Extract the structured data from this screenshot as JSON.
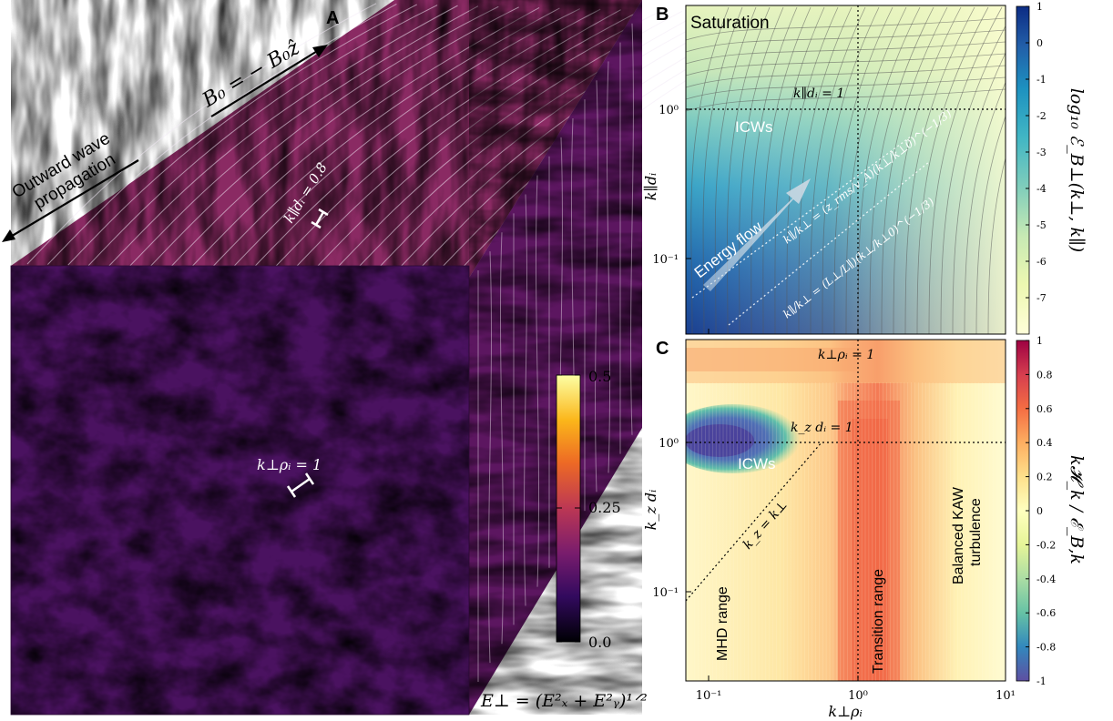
{
  "panel_a": {
    "letter": "A",
    "b_field_label": "B₀ = − B₀ẑ",
    "outward_line1": "Outward wave",
    "outward_line2": "propagation",
    "kpar_annot": "k∥dᵢ = 0.8",
    "kperp_annot": "k⊥ρᵢ = 1",
    "colorbar_ticks": [
      "0.5",
      "0.25",
      "0.0"
    ],
    "colorbar_range": [
      0.0,
      0.5
    ],
    "eperp_label": "E⊥ = (E²ₓ + E²ᵧ)¹ᐟ²",
    "colormap": [
      "#000004",
      "#320a5e",
      "#781c6d",
      "#bc3754",
      "#ed6925",
      "#fbb61a",
      "#fcffa4"
    ]
  },
  "panel_b": {
    "letter": "B",
    "title": "Saturation",
    "ylabel": "k∥dᵢ",
    "ytick_1": "10⁰",
    "ytick_2": "10⁻¹",
    "hline_label": "k∥dᵢ = 1",
    "icw_label": "ICWs",
    "energy_flow": "Energy flow",
    "relation_1": "k∥/k⊥ = (z_rms/v_A)(k⊥/k⊥0)^(−1/3)",
    "relation_2": "k∥/k⊥ = (L⊥/L∥)(k⊥/k⊥0)^(−1/3)",
    "colorbar_label": "log₁₀ ℰ_B⊥(k⊥, k∥)",
    "colorbar_ticks": [
      "1",
      "0",
      "-1",
      "-2",
      "-3",
      "-4",
      "-5",
      "-6",
      "-7"
    ]
  },
  "panel_c": {
    "letter": "C",
    "ylabel": "k_z dᵢ",
    "xlabel": "k⊥ρᵢ",
    "ytick_1": "10⁰",
    "ytick_2": "10⁻¹",
    "xticks": [
      "10⁻¹",
      "10⁰",
      "10¹"
    ],
    "vline_label": "k⊥ρᵢ = 1",
    "hline_label": "k_z dᵢ = 1",
    "diag_label": "k_z = k⊥",
    "icw_label": "ICWs",
    "mhd_label": "MHD range",
    "transition_label": "Transition range",
    "balanced_line1": "Balanced KAW",
    "balanced_line2": "turbulence",
    "colorbar_label": "k𝓗_k / ℰ_B,k",
    "colorbar_ticks": [
      "1",
      "0.8",
      "0.6",
      "0.4",
      "0.2",
      "0",
      "-0.2",
      "-0.4",
      "-0.6",
      "-0.8",
      "-1"
    ]
  },
  "chart_data": [
    {
      "type": "heatmap",
      "title": "Saturation",
      "xlabel": "k⊥ρᵢ",
      "ylabel": "k∥dᵢ",
      "xscale": "log",
      "yscale": "log",
      "xlim": [
        0.075,
        10
      ],
      "ylim": [
        0.035,
        6
      ],
      "colorbar": {
        "label": "log₁₀ ℰ_B⊥(k⊥, k∥)",
        "range": [
          -8,
          1
        ],
        "ticks": [
          1,
          0,
          -1,
          -2,
          -3,
          -4,
          -5,
          -6,
          -7
        ]
      },
      "annotations": [
        "k∥dᵢ = 1",
        "ICWs",
        "Energy flow"
      ]
    },
    {
      "type": "heatmap",
      "xlabel": "k⊥ρᵢ",
      "ylabel": "k_z dᵢ",
      "xscale": "log",
      "yscale": "log",
      "xlim": [
        0.075,
        10
      ],
      "ylim": [
        0.035,
        6
      ],
      "colorbar": {
        "label": "k𝓗_k / ℰ_B,k",
        "range": [
          -1,
          1
        ],
        "ticks": [
          1,
          0.8,
          0.6,
          0.4,
          0.2,
          0,
          -0.2,
          -0.4,
          -0.6,
          -0.8,
          -1
        ]
      },
      "annotations": [
        "k⊥ρᵢ = 1",
        "k_z dᵢ = 1",
        "k_z = k⊥",
        "ICWs",
        "MHD range",
        "Transition range",
        "Balanced KAW turbulence"
      ]
    }
  ]
}
